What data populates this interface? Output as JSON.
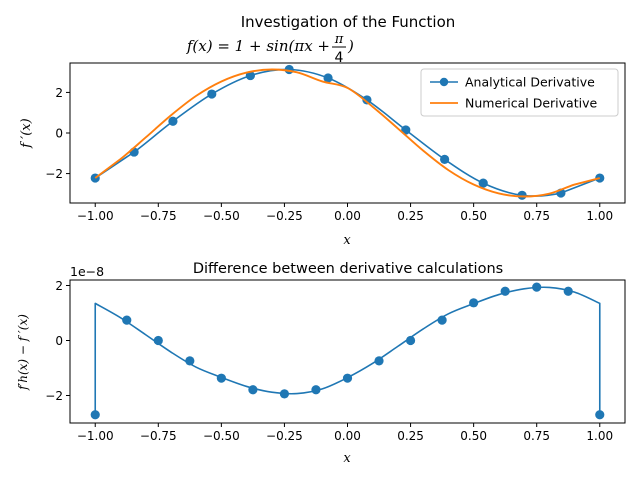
{
  "chart_data": [
    {
      "type": "line",
      "title_line1": "Investigation of the Function",
      "title_line2_lhs": "f(x) = 1 + sin(πx + ",
      "title_frac_num": "π",
      "title_frac_den": "4",
      "title_line2_rhs": ")",
      "xlabel": "x",
      "ylabel": "f ′(x)",
      "xlim": [
        -1.1,
        1.1
      ],
      "ylim": [
        -3.45,
        3.45
      ],
      "xticks": [
        -1.0,
        -0.75,
        -0.5,
        -0.25,
        0.0,
        0.25,
        0.5,
        0.75,
        1.0
      ],
      "xtick_labels": [
        "−1.00",
        "−0.75",
        "−0.50",
        "−0.25",
        "0.00",
        "0.25",
        "0.50",
        "0.75",
        "1.00"
      ],
      "yticks": [
        -2,
        0,
        2
      ],
      "ytick_labels": [
        "−2",
        "0",
        "2"
      ],
      "legend_position": "upper right",
      "series": [
        {
          "name": "Analytical Derivative",
          "color": "#1f77b4",
          "style": "line-with-markers",
          "x": [
            -1.0,
            -0.846,
            -0.692,
            -0.538,
            -0.385,
            -0.231,
            -0.077,
            0.077,
            0.231,
            0.385,
            0.538,
            0.692,
            0.846,
            1.0
          ],
          "y": [
            -2.22,
            -0.94,
            0.58,
            1.92,
            2.83,
            3.13,
            2.71,
            1.63,
            0.15,
            -1.3,
            -2.47,
            -3.07,
            -2.96,
            -2.22
          ]
        },
        {
          "name": "Numerical Derivative",
          "color": "#ff7f0e",
          "style": "line",
          "x": [
            -1.0,
            -0.9,
            -0.8,
            -0.7,
            -0.6,
            -0.5,
            -0.4,
            -0.3,
            -0.2,
            -0.1,
            0.0,
            0.1,
            0.2,
            0.3,
            0.4,
            0.5,
            0.6,
            0.7,
            0.8,
            0.9,
            1.0
          ],
          "y": [
            -2.22,
            -1.29,
            -0.22,
            0.87,
            1.83,
            2.54,
            2.98,
            3.13,
            2.99,
            2.54,
            2.22,
            1.29,
            0.22,
            -0.87,
            -1.83,
            -2.54,
            -2.98,
            -3.13,
            -2.99,
            -2.54,
            -2.22
          ]
        }
      ]
    },
    {
      "type": "line",
      "title": "Difference between derivative calculations",
      "xlabel": "x",
      "ylabel": "f′h(x) − f ′(x)",
      "offset_text": "1e−8",
      "xlim": [
        -1.1,
        1.1
      ],
      "ylim": [
        -3.0,
        2.2
      ],
      "xticks": [
        -1.0,
        -0.75,
        -0.5,
        -0.25,
        0.0,
        0.25,
        0.5,
        0.75,
        1.0
      ],
      "xtick_labels": [
        "−1.00",
        "−0.75",
        "−0.50",
        "−0.25",
        "0.00",
        "0.25",
        "0.50",
        "0.75",
        "1.00"
      ],
      "yticks": [
        -2,
        0,
        2
      ],
      "ytick_labels": [
        "−2",
        "0",
        "2"
      ],
      "series": [
        {
          "color": "#1f77b4",
          "style": "line",
          "x": [
            -1.0,
            -1.0,
            -0.9,
            -0.8,
            -0.7,
            -0.6,
            -0.5,
            -0.4,
            -0.3,
            -0.2,
            -0.1,
            0.0,
            0.1,
            0.2,
            0.3,
            0.4,
            0.5,
            0.6,
            0.7,
            0.8,
            0.9,
            1.0,
            1.0
          ],
          "y": [
            -2.7,
            1.35,
            0.83,
            0.21,
            -0.42,
            -0.97,
            -1.34,
            -1.67,
            -1.88,
            -1.93,
            -1.76,
            -1.35,
            -0.83,
            -0.21,
            0.42,
            0.97,
            1.34,
            1.67,
            1.88,
            1.93,
            1.76,
            1.35,
            -2.7
          ]
        },
        {
          "color": "#1f77b4",
          "style": "markers",
          "x": [
            -1.0,
            -0.875,
            -0.75,
            -0.625,
            -0.5,
            -0.375,
            -0.25,
            -0.125,
            0.0,
            0.125,
            0.25,
            0.375,
            0.5,
            0.625,
            0.75,
            0.875,
            1.0
          ],
          "y": [
            -2.7,
            0.74,
            0.0,
            -0.74,
            -1.37,
            -1.79,
            -1.94,
            -1.79,
            -1.37,
            -0.74,
            0.0,
            0.74,
            1.37,
            1.79,
            1.94,
            1.79,
            -2.7
          ]
        }
      ]
    }
  ]
}
